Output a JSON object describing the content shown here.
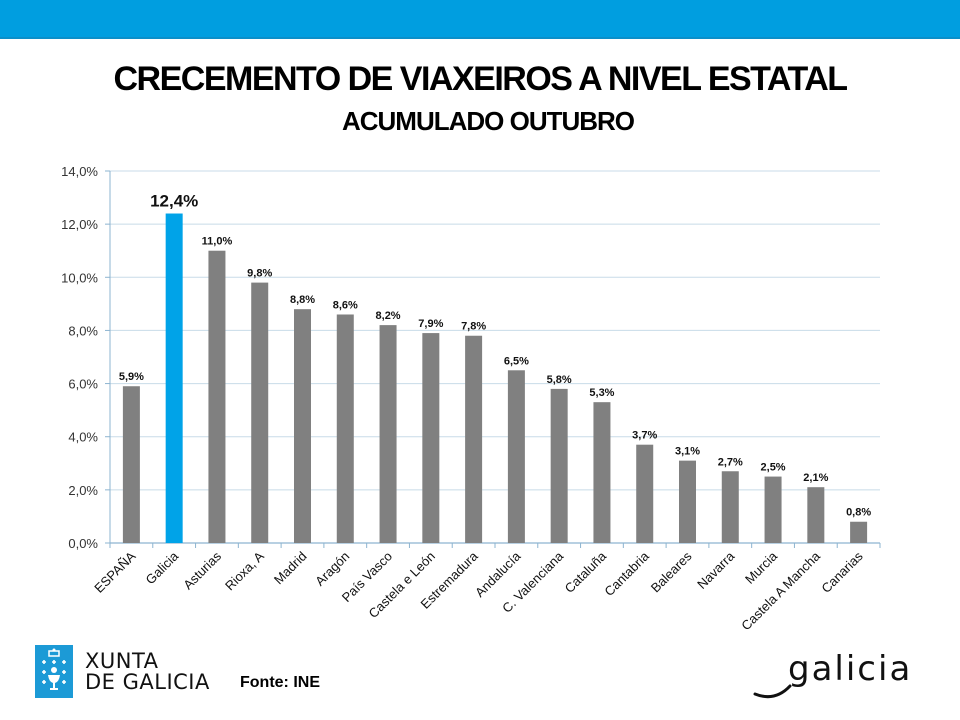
{
  "header": {
    "title": "CRECEMENTO DE VIAXEIROS A NIVEL ESTATAL",
    "subtitle": "ACUMULADO OUTUBRO",
    "brand_color": "#009ee0"
  },
  "chart_data": {
    "type": "bar",
    "title": "CRECEMENTO DE VIAXEIROS A NIVEL ESTATAL",
    "subtitle": "ACUMULADO OUTUBRO",
    "xlabel": "",
    "ylabel": "",
    "ylim": [
      0,
      14
    ],
    "yticks": [
      "0,0%",
      "2,0%",
      "4,0%",
      "6,0%",
      "8,0%",
      "10,0%",
      "12,0%",
      "14,0%"
    ],
    "grid": true,
    "legend": "none",
    "categories": [
      "ESPAÑA",
      "Galicia",
      "Asturias",
      "Rioxa, A",
      "Madrid",
      "Aragón",
      "País Vasco",
      "Castela e León",
      "Estremadura",
      "Andalucía",
      "C. Valenciana",
      "Cataluña",
      "Cantabria",
      "Baleares",
      "Navarra",
      "Murcia",
      "Castela A Mancha",
      "Canarias"
    ],
    "values": [
      5.9,
      12.4,
      11.0,
      9.8,
      8.8,
      8.6,
      8.2,
      7.9,
      7.8,
      6.5,
      5.8,
      5.3,
      3.7,
      3.1,
      2.7,
      2.5,
      2.1,
      0.8
    ],
    "data_labels": [
      "5,9%",
      "12,4%",
      "11,0%",
      "9,8%",
      "8,8%",
      "8,6%",
      "8,2%",
      "7,9%",
      "7,8%",
      "6,5%",
      "5,8%",
      "5,3%",
      "3,7%",
      "3,1%",
      "2,7%",
      "2,5%",
      "2,1%",
      "0,8%"
    ],
    "highlight": "Galicia",
    "colors": {
      "default": "#808080",
      "highlight": "#00a3e8",
      "grid": "#c8dbe8",
      "axis": "#8db4d0"
    }
  },
  "footer": {
    "source": "Fonte: INE",
    "logo_left": [
      "XUNTA",
      "DE GALICIA"
    ],
    "logo_right": "galicia"
  }
}
